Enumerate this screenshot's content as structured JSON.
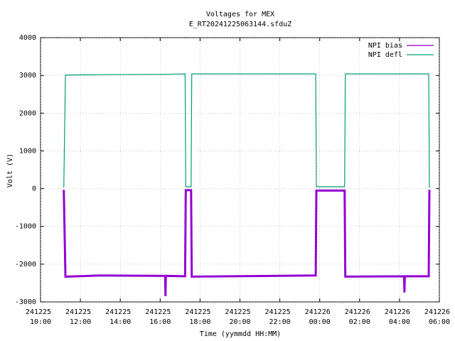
{
  "chart_data": {
    "type": "line",
    "title": "Voltages for MEX",
    "subtitle": "E_RT20241225063144.sfduZ",
    "xlabel": "Time (yymmdd HH:MM)",
    "ylabel": "Volt (V)",
    "x": [
      "241225 11:10",
      "241225 11:15",
      "241225 13:00",
      "241225 16:15",
      "241225 16:16",
      "241225 16:17",
      "241225 17:15",
      "241225 17:17",
      "241225 17:33",
      "241225 17:35",
      "241225 23:48",
      "241225 23:50",
      "241226 01:15",
      "241226 01:17",
      "241226 04:14",
      "241226 04:15",
      "241226 04:16",
      "241226 05:28",
      "241226 05:30"
    ],
    "series": [
      {
        "name": "NPI bias",
        "color": "#9400d3",
        "values": [
          -30,
          -2330,
          -2300,
          -2310,
          -2850,
          -2310,
          -2320,
          -40,
          -40,
          -2330,
          -2300,
          -50,
          -50,
          -2330,
          -2320,
          -2750,
          -2320,
          -2320,
          -30
        ]
      },
      {
        "name": "NPI defl",
        "color": "#009e73",
        "values": [
          30,
          3010,
          3020,
          3030,
          3030,
          3030,
          3040,
          50,
          50,
          3040,
          3040,
          50,
          50,
          3040,
          3040,
          3040,
          3040,
          3040,
          30
        ]
      }
    ],
    "xlim": [
      "241225 10:00",
      "241226 06:00"
    ],
    "xticks": [
      "241225 10:00",
      "241225 12:00",
      "241225 14:00",
      "241225 16:00",
      "241225 18:00",
      "241225 20:00",
      "241225 22:00",
      "241226 00:00",
      "241226 02:00",
      "241226 04:00",
      "241226 06:00"
    ],
    "ylim": [
      -3000,
      4000
    ],
    "yticks": [
      -3000,
      -2000,
      -1000,
      0,
      1000,
      2000,
      3000,
      4000
    ],
    "grid": true,
    "legend": "top-right"
  }
}
